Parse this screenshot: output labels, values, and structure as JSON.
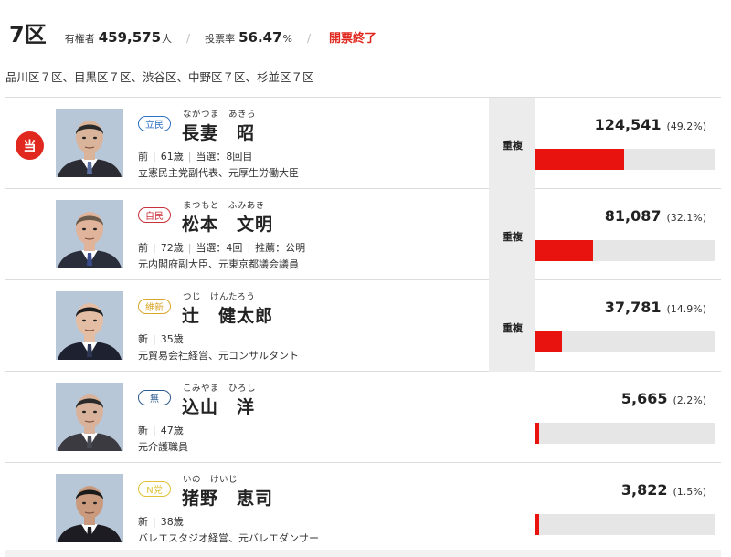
{
  "header": {
    "district": "7区",
    "electorate_label": "有権者",
    "electorate_value": "459,575",
    "electorate_unit": "人",
    "turnout_label": "投票率",
    "turnout_value": "56.47",
    "turnout_unit": "%",
    "status": "開票終了",
    "separator": "/"
  },
  "areas": "品川区７区、目黒区７区、渋谷区、中野区７区、杉並区７区",
  "colors": {
    "accent_red": "#e0281e",
    "bar_red": "#e8130f",
    "bar_track": "#e6e6e6"
  },
  "candidates": [
    {
      "winner": true,
      "winner_label": "当",
      "party": "立民",
      "party_color": "#2d6fc1",
      "kana": "ながつま　あきら",
      "name": "長妻　昭",
      "status": "前",
      "age": "61歳",
      "elected": "当選：8回目",
      "recommend": "",
      "career": "立憲民主党副代表、元厚生労働大臣",
      "duplicate": "重複",
      "votes": "124,541",
      "percent": "(49.2%)",
      "share": 0.492,
      "photo": {
        "shirt": "#ffffff",
        "suit": "#2b2b33",
        "tie": "#5a6fa0",
        "hair": "#2a2a2a",
        "skin": "#d9b49a"
      }
    },
    {
      "winner": false,
      "winner_label": "",
      "party": "自民",
      "party_color": "#c8323a",
      "kana": "まつもと　ふみあき",
      "name": "松本　文明",
      "status": "前",
      "age": "72歳",
      "elected": "当選：4回",
      "recommend": "推薦：公明",
      "career": "元内閣府副大臣、元東京都議会議員",
      "duplicate": "重複",
      "votes": "81,087",
      "percent": "(32.1%)",
      "share": 0.321,
      "photo": {
        "shirt": "#ffffff",
        "suit": "#2a2d3a",
        "tie": "#3b4a8a",
        "hair": "#6a5a4a",
        "skin": "#e0b49a"
      }
    },
    {
      "winner": false,
      "winner_label": "",
      "party": "維新",
      "party_color": "#d9a52a",
      "kana": "つじ　けんたろう",
      "name": "辻　健太郎",
      "status": "新",
      "age": "35歳",
      "elected": "",
      "recommend": "",
      "career": "元貿易会社経営、元コンサルタント",
      "duplicate": "重複",
      "votes": "37,781",
      "percent": "(14.9%)",
      "share": 0.149,
      "photo": {
        "shirt": "#ffffff",
        "suit": "#1e2230",
        "tie": "#2e3656",
        "hair": "#1e1e1e",
        "skin": "#e3bea4"
      }
    },
    {
      "winner": false,
      "winner_label": "",
      "party": "無",
      "party_color": "#2d5a8e",
      "kana": "こみやま　ひろし",
      "name": "込山　洋",
      "status": "新",
      "age": "47歳",
      "elected": "",
      "recommend": "",
      "career": "元介護職員",
      "duplicate": "",
      "votes": "5,665",
      "percent": "(2.2%)",
      "share": 0.022,
      "photo": {
        "shirt": "#ffffff",
        "suit": "#3a3a40",
        "tie": "#4a4a55",
        "hair": "#2a2a2a",
        "skin": "#d8b29a"
      }
    },
    {
      "winner": false,
      "winner_label": "",
      "party": "N党",
      "party_color": "#e0c23a",
      "kana": "いの　けいじ",
      "name": "猪野　恵司",
      "status": "新",
      "age": "38歳",
      "elected": "",
      "recommend": "",
      "career": "バレエスタジオ経営、元バレエダンサー",
      "duplicate": "",
      "votes": "3,822",
      "percent": "(1.5%)",
      "share": 0.015,
      "photo": {
        "shirt": "#ffffff",
        "suit": "#1c1c22",
        "tie": "#1c1c22",
        "hair": "#1a1a1a",
        "skin": "#c99a7e"
      }
    }
  ]
}
